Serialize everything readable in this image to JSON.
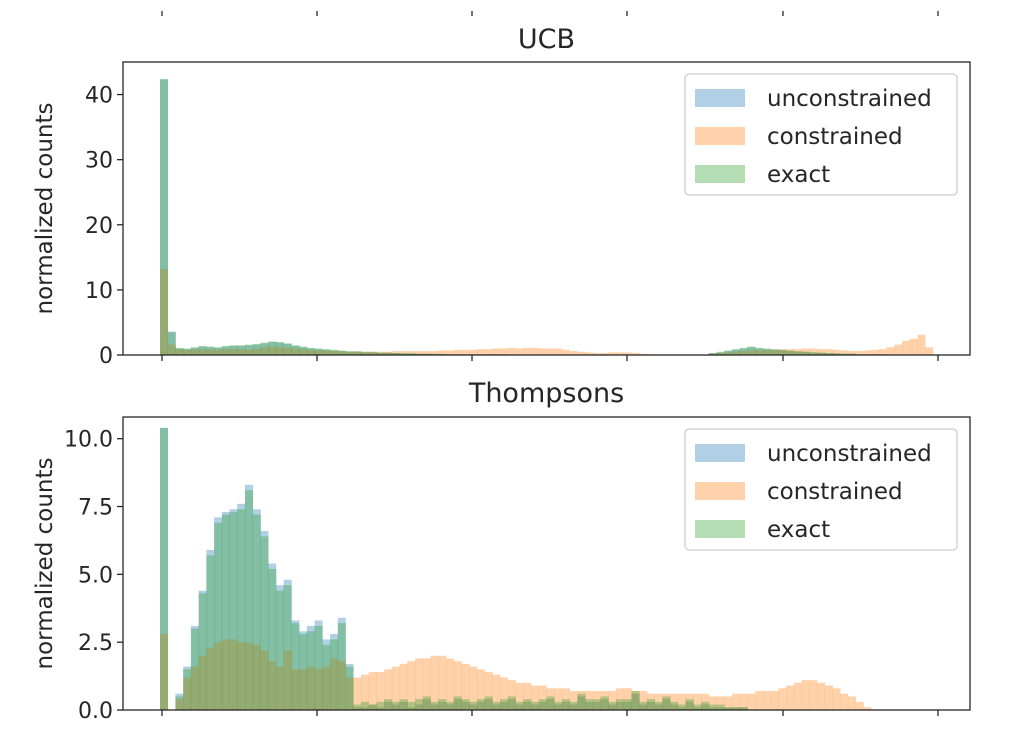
{
  "chart_data": [
    {
      "type": "bar",
      "title": "UCB",
      "xlabel": "",
      "ylabel": "normalized counts",
      "ylim": [
        0,
        45
      ],
      "yticks": [
        0,
        10,
        20,
        30,
        40
      ],
      "grid": false,
      "legend_position": "top-right",
      "bin_start": 0,
      "bin_width": 1,
      "series": [
        {
          "name": "unconstrained",
          "color": "#1f77b4",
          "opacity": 0.35,
          "values": [
            42.4,
            3.6,
            1.0,
            0.9,
            1.1,
            1.3,
            1.2,
            1.1,
            1.3,
            1.4,
            1.4,
            1.5,
            1.6,
            1.8,
            2.0,
            1.9,
            1.7,
            1.4,
            1.2,
            1.0,
            0.9,
            0.8,
            0.7,
            0.6,
            0.5,
            0.5,
            0.4,
            0.4,
            0.3,
            0.3,
            0.3,
            0.2,
            0.2,
            0.2,
            0.2,
            0.1,
            0.1,
            0.1,
            0.1,
            0.1,
            0.1,
            0.1,
            0.1,
            0.1,
            0.1,
            0,
            0,
            0,
            0,
            0,
            0,
            0,
            0,
            0,
            0,
            0,
            0,
            0,
            0,
            0,
            0,
            0,
            0,
            0,
            0,
            0,
            0,
            0,
            0,
            0,
            0,
            0.3,
            0.4,
            0.6,
            0.8,
            1.0,
            1.2,
            1.0,
            0.9,
            0.8,
            0.7,
            0.6,
            0.5,
            0.5,
            0.4,
            0.3,
            0.3,
            0.2,
            0.2,
            0.2,
            0.1,
            0.1,
            0.1,
            0.1,
            0,
            0,
            0,
            0,
            0,
            0
          ]
        },
        {
          "name": "constrained",
          "color": "#ff7f0e",
          "opacity": 0.35,
          "values": [
            13.2,
            1.6,
            0.9,
            0.8,
            0.8,
            0.9,
            0.8,
            0.8,
            0.9,
            0.9,
            0.9,
            0.8,
            1.0,
            1.2,
            1.3,
            1.2,
            1.1,
            1.0,
            0.9,
            0.8,
            0.7,
            0.7,
            0.6,
            0.6,
            0.5,
            0.5,
            0.5,
            0.5,
            0.5,
            0.5,
            0.6,
            0.6,
            0.6,
            0.6,
            0.6,
            0.6,
            0.7,
            0.7,
            0.8,
            0.8,
            0.8,
            0.9,
            0.9,
            1.0,
            1.0,
            1.1,
            1.0,
            1.1,
            1.1,
            1.0,
            1.0,
            1.0,
            0.8,
            0.6,
            0.5,
            0.4,
            0.3,
            0.3,
            0.4,
            0.4,
            0.4,
            0.3,
            0.2,
            0.1,
            0,
            0,
            0,
            0,
            0,
            0,
            0,
            0.2,
            0.3,
            0.4,
            0.5,
            0.6,
            0.7,
            0.7,
            0.8,
            0.8,
            0.9,
            0.9,
            0.9,
            1.0,
            1.0,
            0.9,
            0.9,
            0.8,
            0.7,
            0.6,
            0.6,
            0.7,
            0.8,
            0.9,
            1.2,
            1.6,
            2.2,
            2.5,
            3.1,
            1.2
          ]
        },
        {
          "name": "exact",
          "color": "#2ca02c",
          "opacity": 0.35,
          "values": [
            42.3,
            3.5,
            1.1,
            1.0,
            1.2,
            1.4,
            1.3,
            1.2,
            1.4,
            1.5,
            1.5,
            1.6,
            1.7,
            1.9,
            2.1,
            2.0,
            1.8,
            1.5,
            1.3,
            1.1,
            1.0,
            0.9,
            0.8,
            0.7,
            0.6,
            0.6,
            0.5,
            0.5,
            0.4,
            0.4,
            0.3,
            0.3,
            0.3,
            0.2,
            0.2,
            0.2,
            0.2,
            0.1,
            0.1,
            0.1,
            0.1,
            0.1,
            0.1,
            0.1,
            0.1,
            0,
            0,
            0,
            0,
            0,
            0,
            0,
            0,
            0,
            0,
            0,
            0,
            0,
            0,
            0,
            0,
            0,
            0,
            0,
            0,
            0,
            0,
            0,
            0,
            0,
            0,
            0.3,
            0.5,
            0.7,
            0.9,
            1.1,
            1.3,
            1.1,
            1.0,
            0.9,
            0.8,
            0.7,
            0.6,
            0.5,
            0.4,
            0.4,
            0.3,
            0.3,
            0.2,
            0.2,
            0.1,
            0.1,
            0.1,
            0.1,
            0,
            0,
            0,
            0,
            0,
            0
          ]
        }
      ]
    },
    {
      "type": "bar",
      "title": "Thompsons",
      "xlabel": "",
      "ylabel": "normalized counts",
      "ylim": [
        0,
        10.8
      ],
      "yticks": [
        0.0,
        2.5,
        5.0,
        7.5,
        10.0
      ],
      "grid": false,
      "legend_position": "top-right",
      "bin_start": 0,
      "bin_width": 1,
      "series": [
        {
          "name": "unconstrained",
          "color": "#1f77b4",
          "opacity": 0.35,
          "values": [
            10.4,
            0,
            0.6,
            1.6,
            3.1,
            4.4,
            5.9,
            7.1,
            7.3,
            7.4,
            7.6,
            8.3,
            7.4,
            6.6,
            5.4,
            4.6,
            4.8,
            3.3,
            2.9,
            3.1,
            3.3,
            2.6,
            2.8,
            3.4,
            1.7,
            0.1,
            0.1,
            0.2,
            0.1,
            0.3,
            0.2,
            0.3,
            0.1,
            0.2,
            0.4,
            0.2,
            0.3,
            0.2,
            0.4,
            0.3,
            0.2,
            0.3,
            0.4,
            0.2,
            0.3,
            0.4,
            0.2,
            0.3,
            0.2,
            0.3,
            0.4,
            0.2,
            0.3,
            0.2,
            0.5,
            0.3,
            0.3,
            0.4,
            0.2,
            0.3,
            0.3,
            0.6,
            0.2,
            0.3,
            0.2,
            0.4,
            0.2,
            0.1,
            0.3,
            0.1,
            0.2,
            0.1,
            0.1,
            0.1,
            0.1,
            0.1,
            0,
            0,
            0,
            0,
            0,
            0,
            0,
            0,
            0,
            0,
            0,
            0,
            0,
            0,
            0,
            0,
            0,
            0,
            0,
            0,
            0,
            0,
            0,
            0
          ]
        },
        {
          "name": "constrained",
          "color": "#ff7f0e",
          "opacity": 0.35,
          "values": [
            2.8,
            0,
            0.4,
            1.2,
            1.6,
            2.0,
            2.3,
            2.5,
            2.6,
            2.6,
            2.5,
            2.5,
            2.4,
            2.2,
            1.8,
            1.6,
            2.2,
            1.5,
            1.5,
            1.6,
            1.5,
            1.6,
            1.9,
            1.8,
            1.2,
            1.2,
            1.3,
            1.4,
            1.4,
            1.5,
            1.6,
            1.7,
            1.8,
            1.9,
            1.9,
            2.0,
            2.0,
            1.9,
            1.8,
            1.7,
            1.6,
            1.5,
            1.4,
            1.3,
            1.2,
            1.1,
            1.0,
            1.0,
            0.9,
            0.9,
            0.8,
            0.8,
            0.8,
            0.7,
            0.7,
            0.7,
            0.7,
            0.7,
            0.7,
            0.8,
            0.8,
            0.7,
            0.7,
            0.6,
            0.6,
            0.6,
            0.6,
            0.6,
            0.6,
            0.6,
            0.6,
            0.5,
            0.5,
            0.5,
            0.6,
            0.6,
            0.6,
            0.7,
            0.7,
            0.7,
            0.8,
            0.9,
            1.0,
            1.1,
            1.1,
            1.0,
            0.9,
            0.8,
            0.6,
            0.5,
            0.3,
            0.1,
            0,
            0,
            0,
            0,
            0,
            0,
            0,
            0
          ]
        },
        {
          "name": "exact",
          "color": "#2ca02c",
          "opacity": 0.35,
          "values": [
            10.4,
            0,
            0.5,
            1.5,
            3.0,
            4.3,
            5.7,
            6.9,
            7.2,
            7.3,
            7.4,
            8.1,
            7.2,
            6.4,
            5.2,
            4.4,
            4.6,
            3.2,
            2.8,
            2.9,
            3.1,
            2.4,
            2.6,
            3.2,
            1.6,
            0.2,
            0.3,
            0.2,
            0.3,
            0.4,
            0.3,
            0.4,
            0.3,
            0.4,
            0.5,
            0.3,
            0.4,
            0.3,
            0.5,
            0.4,
            0.3,
            0.4,
            0.5,
            0.3,
            0.4,
            0.5,
            0.3,
            0.4,
            0.3,
            0.4,
            0.5,
            0.3,
            0.4,
            0.3,
            0.6,
            0.4,
            0.4,
            0.5,
            0.3,
            0.4,
            0.4,
            0.7,
            0.3,
            0.4,
            0.3,
            0.5,
            0.3,
            0.2,
            0.4,
            0.2,
            0.3,
            0.2,
            0.2,
            0.1,
            0.1,
            0.1,
            0,
            0,
            0,
            0,
            0,
            0,
            0,
            0,
            0,
            0,
            0,
            0,
            0,
            0,
            0,
            0,
            0,
            0,
            0,
            0,
            0,
            0,
            0,
            0
          ]
        }
      ]
    }
  ]
}
